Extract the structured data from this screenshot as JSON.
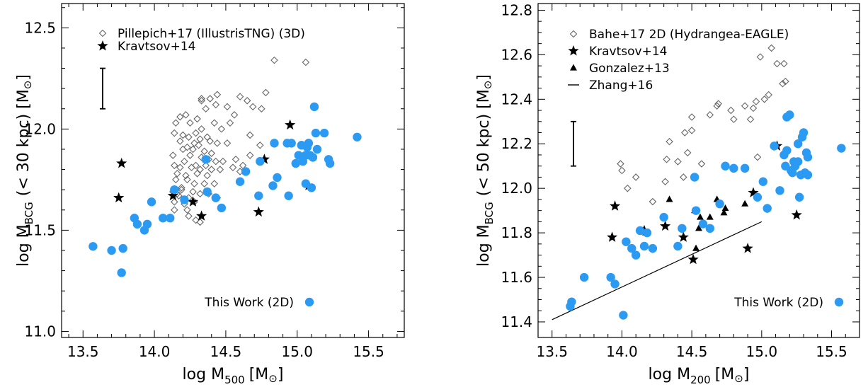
{
  "chart_data": [
    {
      "type": "scatter",
      "title": "",
      "xlabel": {
        "base": "log M",
        "sub": "500",
        "unit": "[M",
        "sun": "⊙",
        "close": "]"
      },
      "ylabel": {
        "base": "log M",
        "sub": "BCG",
        "mid": "(< 30 kpc) [M",
        "sun": "⊙",
        "close": "]"
      },
      "xlim": [
        13.35,
        15.75
      ],
      "ylim": [
        10.97,
        12.62
      ],
      "xticks": [
        "13.5",
        "14.0",
        "14.5",
        "15.0",
        "15.5"
      ],
      "yticks": [
        "11.0",
        "11.5",
        "12.0",
        "12.5"
      ],
      "errorbar": {
        "x": 13.64,
        "y_low": 12.1,
        "y_high": 12.3
      },
      "series": [
        {
          "name": "Pillepich+17 (IllustrisTNG) (3D)",
          "marker": "diamond-open",
          "color": "#666666",
          "x": [
            14.33,
            14.36,
            14.33,
            14.39,
            14.44,
            14.43,
            14.51,
            14.6,
            14.69,
            14.78,
            14.53,
            14.56,
            14.22,
            14.18,
            14.15,
            14.25,
            14.3,
            14.42,
            14.33,
            14.29,
            14.47,
            14.37,
            14.24,
            14.2,
            14.28,
            14.32,
            14.39,
            14.14,
            14.18,
            14.23,
            14.31,
            14.44,
            14.51,
            14.4,
            14.35,
            14.27,
            14.2,
            14.13,
            14.25,
            14.33,
            14.38,
            14.43,
            14.48,
            14.55,
            14.21,
            14.29,
            14.36,
            14.14,
            14.18,
            14.26,
            14.32,
            14.4,
            14.46,
            14.16,
            14.22,
            14.3,
            14.37,
            14.15,
            14.23,
            14.28,
            14.35,
            14.42,
            14.19,
            14.13,
            14.27,
            14.32,
            14.38,
            14.44,
            14.17,
            14.24,
            14.62,
            14.67,
            14.74,
            14.57,
            14.14,
            14.21,
            14.19,
            14.28,
            14.24,
            14.14,
            14.29,
            14.32,
            14.16,
            14.23,
            14.84,
            15.06,
            14.6,
            14.67,
            14.65,
            14.75
          ],
          "y": [
            12.15,
            12.1,
            12.14,
            12.15,
            12.17,
            12.12,
            12.11,
            12.16,
            12.11,
            12.18,
            12.03,
            12.07,
            12.07,
            12.06,
            12.03,
            12.03,
            12.05,
            12.03,
            12.0,
            11.98,
            12.0,
            11.96,
            11.96,
            11.97,
            11.93,
            11.95,
            11.94,
            11.98,
            11.94,
            11.91,
            11.92,
            11.93,
            11.93,
            11.88,
            11.89,
            11.9,
            11.9,
            11.87,
            11.87,
            11.86,
            11.85,
            11.84,
            11.84,
            11.81,
            11.84,
            11.82,
            11.82,
            11.82,
            11.81,
            11.81,
            11.8,
            11.8,
            11.8,
            11.78,
            11.77,
            11.78,
            11.77,
            11.75,
            11.75,
            11.73,
            11.73,
            11.73,
            11.71,
            11.69,
            11.69,
            11.68,
            11.68,
            11.66,
            11.67,
            11.66,
            11.82,
            11.97,
            11.92,
            11.85,
            11.6,
            11.63,
            11.7,
            11.64,
            11.57,
            11.64,
            11.55,
            11.54,
            11.68,
            11.6,
            12.34,
            12.33,
            11.79,
            11.87,
            12.14,
            12.1
          ]
        },
        {
          "name": "Kravtsov+14",
          "marker": "star",
          "color": "#000000",
          "x": [
            13.75,
            13.77,
            14.13,
            14.27,
            14.33,
            14.73,
            14.77,
            14.95,
            15.08
          ],
          "y": [
            11.66,
            11.83,
            11.67,
            11.64,
            11.57,
            11.59,
            11.85,
            12.02,
            11.72
          ]
        },
        {
          "name": "This Work (2D)",
          "marker": "circle-filled",
          "color": "#2b9af3",
          "x": [
            13.57,
            13.7,
            13.77,
            13.78,
            13.86,
            13.88,
            13.93,
            13.95,
            13.98,
            14.06,
            14.11,
            14.14,
            14.21,
            14.36,
            14.37,
            14.43,
            14.47,
            14.6,
            14.64,
            14.73,
            14.74,
            14.83,
            14.84,
            14.86,
            14.93,
            14.94,
            14.96,
            14.99,
            15.01,
            15.03,
            15.04,
            15.06,
            15.06,
            15.07,
            15.08,
            15.09,
            15.11,
            15.12,
            15.13,
            15.14,
            15.19,
            15.22,
            15.23,
            15.42,
            15.1
          ],
          "y": [
            11.42,
            11.4,
            11.29,
            11.41,
            11.56,
            11.53,
            11.5,
            11.53,
            11.64,
            11.56,
            11.56,
            11.7,
            11.65,
            11.85,
            11.69,
            11.66,
            11.61,
            11.74,
            11.79,
            11.67,
            11.84,
            11.72,
            11.93,
            11.76,
            11.93,
            11.67,
            11.93,
            11.83,
            11.87,
            11.92,
            11.84,
            11.87,
            11.73,
            11.91,
            11.93,
            11.87,
            11.86,
            12.11,
            11.98,
            11.9,
            11.98,
            11.85,
            11.83,
            11.96,
            11.71
          ]
        }
      ],
      "legend_position": "top-left (markers left of label), This Work bottom-right (label left of marker)"
    },
    {
      "type": "scatter",
      "title": "",
      "xlabel": {
        "base": "log M",
        "sub": "200",
        "unit": "[M",
        "sun": "⊙",
        "close": "]"
      },
      "ylabel": {
        "base": "log M",
        "sub": "BCG",
        "mid": "(< 50 kpc) [M",
        "sun": "⊙",
        "close": "]"
      },
      "xlim": [
        13.4,
        15.7
      ],
      "ylim": [
        11.33,
        12.83
      ],
      "xticks": [
        "13.5",
        "14.0",
        "14.5",
        "15.0",
        "15.5"
      ],
      "yticks": [
        "11.4",
        "11.6",
        "11.8",
        "12.0",
        "12.2",
        "12.4",
        "12.6",
        "12.8"
      ],
      "errorbar": {
        "x": 13.73,
        "y_low": 12.1,
        "y_high": 12.3
      },
      "series": [
        {
          "name": "Bahe+17 2D (Hydrangea-EAGLE)",
          "marker": "diamond-open",
          "color": "#666666",
          "x": [
            13.99,
            14.0,
            14.04,
            14.1,
            14.22,
            14.31,
            14.34,
            14.45,
            14.5,
            14.63,
            14.68,
            14.69,
            14.78,
            14.8,
            14.88,
            14.92,
            14.94,
            14.96,
            14.97,
            15.02,
            15.05,
            15.11,
            15.15,
            15.16,
            15.17,
            15.07,
            14.99,
            14.4,
            14.47,
            14.32,
            14.44,
            14.5,
            14.57
          ],
          "y": [
            12.11,
            12.08,
            12.0,
            12.05,
            11.94,
            12.03,
            12.21,
            12.25,
            12.26,
            12.33,
            12.37,
            12.38,
            12.35,
            12.31,
            12.37,
            12.31,
            12.36,
            12.39,
            12.14,
            12.4,
            12.42,
            12.56,
            12.47,
            12.56,
            12.48,
            12.63,
            12.59,
            12.12,
            12.16,
            12.13,
            12.05,
            12.32,
            12.11
          ]
        },
        {
          "name": "Kravtsov+14",
          "marker": "star",
          "color": "#000000",
          "x": [
            13.93,
            13.95,
            14.16,
            14.31,
            14.44,
            14.51,
            14.9,
            14.94,
            15.11,
            15.25
          ],
          "y": [
            11.78,
            11.92,
            11.81,
            11.83,
            11.78,
            11.68,
            11.73,
            11.98,
            12.19,
            11.88
          ]
        },
        {
          "name": "Gonzalez+13",
          "marker": "triangle-filled",
          "color": "#000000",
          "x": [
            14.15,
            14.17,
            14.34,
            14.52,
            14.53,
            14.55,
            14.56,
            14.63,
            14.68,
            14.73,
            14.74,
            14.88
          ],
          "y": [
            11.81,
            11.8,
            11.95,
            11.9,
            11.73,
            11.82,
            11.87,
            11.87,
            11.95,
            11.89,
            11.91,
            11.93
          ]
        },
        {
          "name": "Zhang+16",
          "marker": "line",
          "color": "#000000",
          "x": [
            13.5,
            15.0
          ],
          "y": [
            11.41,
            11.85
          ]
        },
        {
          "name": "This Work (2D)",
          "marker": "circle-filled",
          "color": "#2b9af3",
          "x": [
            13.63,
            13.64,
            13.73,
            13.92,
            13.95,
            14.01,
            14.03,
            14.07,
            14.1,
            14.13,
            14.16,
            14.18,
            14.22,
            14.3,
            14.4,
            14.43,
            14.52,
            14.53,
            14.58,
            14.63,
            14.7,
            14.74,
            14.8,
            14.88,
            14.97,
            15.01,
            15.04,
            15.09,
            15.13,
            15.16,
            15.17,
            15.18,
            15.2,
            15.21,
            15.22,
            15.24,
            15.26,
            15.27,
            15.28,
            15.29,
            15.3,
            15.31,
            15.32,
            15.33,
            15.33,
            15.57,
            15.18,
            15.23,
            15.26
          ],
          "y": [
            11.47,
            11.49,
            11.6,
            11.6,
            11.57,
            11.43,
            11.76,
            11.73,
            11.7,
            11.81,
            11.74,
            11.8,
            11.73,
            11.87,
            11.74,
            11.82,
            12.05,
            11.9,
            11.84,
            11.82,
            11.93,
            12.1,
            12.09,
            12.09,
            11.96,
            12.03,
            11.91,
            12.19,
            11.99,
            12.15,
            12.1,
            12.32,
            12.33,
            12.08,
            12.07,
            12.1,
            12.2,
            11.96,
            12.06,
            12.23,
            12.25,
            12.07,
            12.16,
            12.14,
            12.06,
            12.18,
            12.17,
            12.12,
            12.12
          ]
        }
      ],
      "legend_position": "top-left (markers left of label), This Work bottom-right (label left of marker)"
    }
  ]
}
